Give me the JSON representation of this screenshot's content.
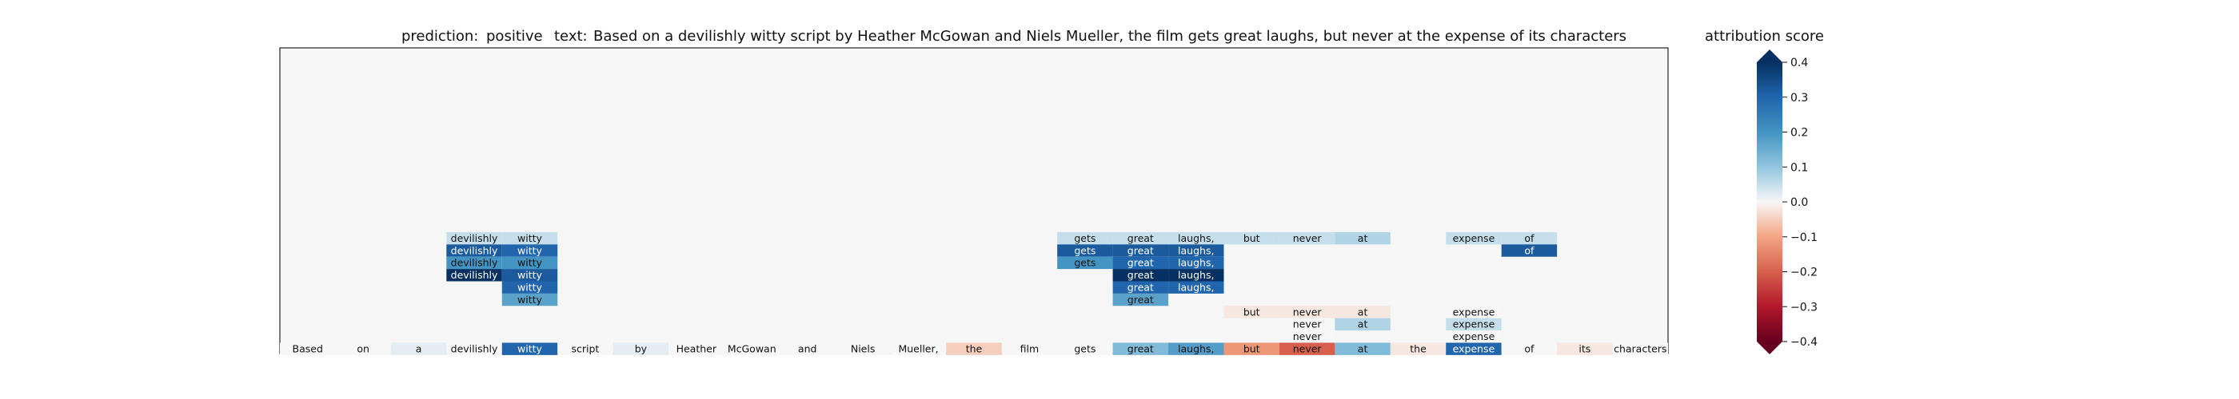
{
  "header": {
    "prediction_label": "prediction:",
    "prediction_value": "positive",
    "text_label": "text:",
    "text_value": "Based on a devilishly witty script by Heather McGowan and Niels Mueller, the film gets great laughs, but never at the expense of its characters"
  },
  "colorbar": {
    "title": "attribution score",
    "ticks": [
      "0.4",
      "0.3",
      "0.2",
      "0.1",
      "0.0",
      "−0.1",
      "−0.2",
      "−0.3",
      "−0.4"
    ],
    "range": [
      -0.4,
      0.4
    ]
  },
  "colors": {
    "background": "#f5f6f5",
    "positive_max": "#053061",
    "negative_max": "#67001f",
    "neutral": "#f7f7f7"
  },
  "chart_data": {
    "type": "heatmap",
    "title": "attribution score",
    "tokens": [
      "Based",
      "on",
      "a",
      "devilishly",
      "witty",
      "script",
      "by",
      "Heather",
      "McGowan",
      "and",
      "Niels",
      "Mueller,",
      "the",
      "film",
      "gets",
      "great",
      "laughs,",
      "but",
      "never",
      "at",
      "the",
      "expense",
      "of",
      "its",
      "characters"
    ],
    "base_row_scores": [
      0.0,
      0.0,
      0.02,
      0.0,
      0.3,
      0.0,
      0.02,
      0.0,
      0.0,
      0.0,
      0.0,
      0.0,
      -0.05,
      0.0,
      0.0,
      0.12,
      0.18,
      -0.12,
      -0.2,
      0.12,
      -0.02,
      0.3,
      0.0,
      -0.02,
      0.0
    ],
    "rows": [
      {
        "level": 9,
        "cells": [
          {
            "token": "devilishly",
            "score": 0.05
          },
          {
            "token": "witty",
            "score": 0.05
          },
          {
            "token": "gets",
            "score": 0.05
          },
          {
            "token": "great",
            "score": 0.05
          },
          {
            "token": "laughs,",
            "score": 0.05
          },
          {
            "token": "but",
            "score": 0.05
          },
          {
            "token": "never",
            "score": 0.05
          },
          {
            "token": "at",
            "score": 0.07
          },
          {
            "token": "expense",
            "score": 0.05
          },
          {
            "token": "of",
            "score": 0.05
          }
        ]
      },
      {
        "level": 8,
        "cells": [
          {
            "token": "devilishly",
            "score": 0.32
          },
          {
            "token": "witty",
            "score": 0.3
          },
          {
            "token": "gets",
            "score": 0.32
          },
          {
            "token": "great",
            "score": 0.32
          },
          {
            "token": "laughs,",
            "score": 0.32
          },
          {
            "token": "of",
            "score": 0.32
          }
        ]
      },
      {
        "level": 7,
        "cells": [
          {
            "token": "devilishly",
            "score": 0.2
          },
          {
            "token": "witty",
            "score": 0.2
          },
          {
            "token": "gets",
            "score": 0.2
          },
          {
            "token": "great",
            "score": 0.3
          },
          {
            "token": "laughs,",
            "score": 0.3
          }
        ]
      },
      {
        "level": 6,
        "cells": [
          {
            "token": "devilishly",
            "score": 0.4
          },
          {
            "token": "witty",
            "score": 0.32
          },
          {
            "token": "great",
            "score": 0.4
          },
          {
            "token": "laughs,",
            "score": 0.4
          }
        ]
      },
      {
        "level": 5,
        "cells": [
          {
            "token": "witty",
            "score": 0.3
          },
          {
            "token": "great",
            "score": 0.3
          },
          {
            "token": "laughs,",
            "score": 0.3
          }
        ]
      },
      {
        "level": 4,
        "cells": [
          {
            "token": "witty",
            "score": 0.17
          },
          {
            "token": "great",
            "score": 0.17
          }
        ]
      },
      {
        "level": 3,
        "cells": [
          {
            "token": "but",
            "score": -0.02
          },
          {
            "token": "never",
            "score": -0.02
          },
          {
            "token": "at",
            "score": -0.02
          },
          {
            "token": "expense",
            "score": 0.0
          }
        ]
      },
      {
        "level": 2,
        "cells": [
          {
            "token": "never",
            "score": 0.0
          },
          {
            "token": "at",
            "score": 0.07
          },
          {
            "token": "expense",
            "score": 0.05
          }
        ]
      },
      {
        "level": 1,
        "cells": [
          {
            "token": "never",
            "score": 0.0
          },
          {
            "token": "expense",
            "score": 0.0
          }
        ]
      }
    ]
  }
}
